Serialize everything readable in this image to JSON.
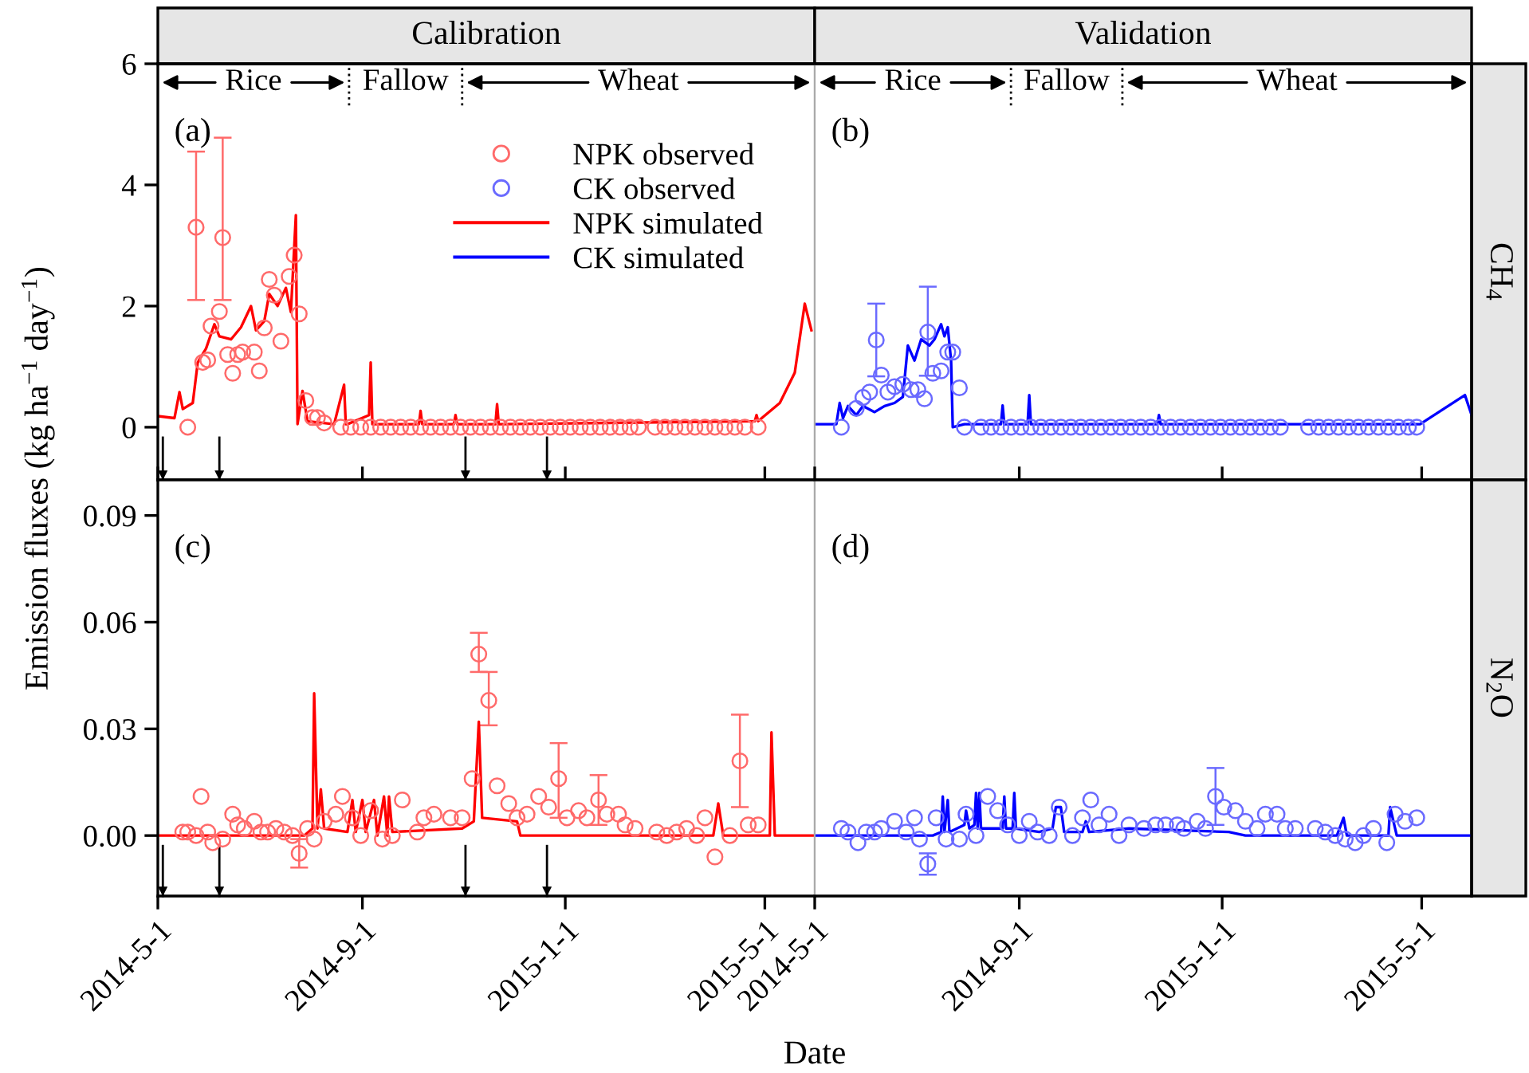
{
  "chart_data": [
    {
      "type": "line",
      "title": "Calibration",
      "ylabel": "Emission fluxes (kg ha$^{−1}$ day$^{−1}$)",
      "legend": "top right",
      "tick_labels": "y",
      "annotations": [
        "(a)",
        "Rice",
        "Fallow",
        "Wheat"
      ],
      "xlim": [
        "2014-05-01",
        "2015-05-31"
      ],
      "ylim": [
        -0.87,
        6
      ],
      "yticks": [
        0,
        2,
        4,
        6
      ],
      "ref_lines": [
        {
          "axis": "x",
          "value": "2014-05-04"
        },
        {
          "axis": "x",
          "value": "2014-06-07"
        },
        {
          "axis": "x",
          "value": "2014-11-02"
        },
        {
          "axis": "x",
          "value": "2014-12-21"
        },
        {
          "axis": "x",
          "value": "2014-08-24",
          "line_style": "dotted"
        },
        {
          "axis": "x",
          "value": "2014-10-31",
          "line_style": "dotted"
        }
      ],
      "series": [
        {
          "name": "NPK observed",
          "type": "scatter",
          "marker": "circle",
          "color": "#ff6a6a",
          "x": [
            "2014-05-19",
            "2014-05-24",
            "2014-05-28",
            "2014-05-31",
            "2014-06-02",
            "2014-06-07",
            "2014-06-09",
            "2014-06-12",
            "2014-06-15",
            "2014-06-18",
            "2014-06-21",
            "2014-06-28",
            "2014-07-01",
            "2014-07-04",
            "2014-07-07",
            "2014-07-10",
            "2014-07-14",
            "2014-07-19",
            "2014-07-22",
            "2014-07-25",
            "2014-07-29",
            "2014-08-02",
            "2014-08-05",
            "2014-08-09",
            "2014-08-19",
            "2014-08-25",
            "2014-08-31",
            "2014-09-06",
            "2014-09-12",
            "2014-09-18",
            "2014-09-24",
            "2014-09-30",
            "2014-10-06",
            "2014-10-12",
            "2014-10-18",
            "2014-10-24",
            "2014-10-30",
            "2014-11-05",
            "2014-11-11",
            "2014-11-17",
            "2014-11-23",
            "2014-11-29",
            "2014-12-05",
            "2014-12-11",
            "2014-12-17",
            "2014-12-23",
            "2014-12-29",
            "2015-01-04",
            "2015-01-10",
            "2015-01-16",
            "2015-01-22",
            "2015-01-28",
            "2015-02-03",
            "2015-02-09",
            "2015-02-14",
            "2015-02-24",
            "2015-03-02",
            "2015-03-08",
            "2015-03-14",
            "2015-03-20",
            "2015-03-26",
            "2015-04-01",
            "2015-04-07",
            "2015-04-13",
            "2015-04-19",
            "2015-04-27"
          ],
          "values": [
            0.0,
            3.3,
            1.07,
            1.11,
            1.67,
            1.91,
            3.13,
            1.2,
            0.89,
            1.2,
            1.24,
            1.24,
            0.93,
            1.64,
            2.44,
            2.18,
            1.42,
            2.49,
            2.84,
            1.87,
            0.44,
            0.16,
            0.16,
            0.07,
            0.0,
            0,
            0,
            0,
            0,
            0,
            0,
            0,
            0,
            0,
            0,
            0,
            0,
            0,
            0,
            0,
            0,
            0,
            0,
            0,
            0,
            0,
            0,
            0,
            0,
            0,
            0,
            0,
            0,
            0,
            0,
            0,
            0,
            0,
            0,
            0,
            0,
            0,
            0,
            0,
            0,
            0
          ],
          "errors": [
            null,
            [
              2.1,
              4.55
            ],
            null,
            null,
            null,
            null,
            [
              2.1,
              4.78
            ],
            null,
            null,
            null,
            null,
            null,
            null,
            null,
            null,
            null,
            null,
            null,
            null,
            null,
            null,
            null,
            null,
            null,
            null,
            null,
            null,
            null,
            null,
            null,
            null,
            null,
            null,
            null,
            null,
            null,
            null,
            null,
            null,
            null,
            null,
            null,
            null,
            null,
            null,
            null,
            null,
            null,
            null,
            null,
            null,
            null,
            null,
            null,
            null,
            null,
            null,
            null,
            null,
            null,
            null,
            null,
            null,
            null,
            null,
            null
          ]
        },
        {
          "name": "NPK simulated",
          "color": "#ff0000",
          "x": [
            "2014-05-02",
            "2014-05-11",
            "2014-05-14",
            "2014-05-16",
            "2014-05-22",
            "2014-05-25",
            "2014-05-30",
            "2014-06-04",
            "2014-06-07",
            "2014-06-14",
            "2014-06-20",
            "2014-06-26",
            "2014-06-29",
            "2014-07-04",
            "2014-07-07",
            "2014-07-12",
            "2014-07-17",
            "2014-07-20",
            "2014-07-23",
            "2014-07-24",
            "2014-07-27",
            "2014-07-30",
            "2014-08-15",
            "2014-08-21",
            "2014-08-22",
            "2014-08-23",
            "2014-09-05",
            "2014-09-06",
            "2014-09-07",
            "2014-10-05",
            "2014-10-06",
            "2014-10-07",
            "2014-10-26",
            "2014-10-27",
            "2014-10-28",
            "2014-11-20",
            "2014-11-21",
            "2014-11-22",
            "2015-04-25",
            "2015-04-26",
            "2015-04-27",
            "2015-05-10",
            "2015-05-19",
            "2015-05-25",
            "2015-05-29"
          ],
          "values": [
            0.18,
            0.15,
            0.58,
            0.3,
            0.4,
            1.07,
            1.3,
            1.7,
            1.5,
            1.45,
            1.65,
            2.0,
            1.6,
            1.75,
            2.2,
            2.0,
            2.3,
            1.9,
            3.5,
            0.05,
            0.6,
            0.1,
            0.05,
            0.7,
            0.05,
            0.05,
            0.2,
            1.07,
            0.05,
            0.05,
            0.27,
            0.05,
            0.05,
            0.2,
            0.05,
            0.05,
            0.38,
            0.05,
            0.1,
            0.2,
            0.1,
            0.4,
            0.9,
            2.04,
            1.6
          ]
        }
      ]
    },
    {
      "type": "line",
      "title": "Validation",
      "y2label": "CH$_{4}$",
      "legend": "top left",
      "tick_labels": false,
      "annotations": [
        "(b)",
        "Rice",
        "Fallow",
        "Wheat"
      ],
      "xlim": [
        "2014-05-01",
        "2015-05-31"
      ],
      "ylim": [
        -0.87,
        6
      ],
      "ref_lines": [
        {
          "axis": "x",
          "value": "2014-08-27",
          "line_style": "dotted"
        },
        {
          "axis": "x",
          "value": "2014-11-02",
          "line_style": "dotted"
        }
      ],
      "series": [
        {
          "name": "CK observed",
          "type": "scatter",
          "marker": "circle",
          "color": "#6a6aff",
          "x": [
            "2014-05-17",
            "2014-05-26",
            "2014-05-30",
            "2014-06-03",
            "2014-06-07",
            "2014-06-10",
            "2014-06-14",
            "2014-06-18",
            "2014-06-23",
            "2014-06-28",
            "2014-07-02",
            "2014-07-06",
            "2014-07-08",
            "2014-07-11",
            "2014-07-16",
            "2014-07-20",
            "2014-07-23",
            "2014-07-27",
            "2014-07-30",
            "2014-08-09",
            "2014-08-15",
            "2014-08-21",
            "2014-08-27",
            "2014-09-02",
            "2014-09-08",
            "2014-09-14",
            "2014-09-20",
            "2014-09-26",
            "2014-10-02",
            "2014-10-08",
            "2014-10-14",
            "2014-10-20",
            "2014-10-26",
            "2014-11-01",
            "2014-11-07",
            "2014-11-13",
            "2014-11-19",
            "2014-11-25",
            "2014-12-01",
            "2014-12-07",
            "2014-12-13",
            "2014-12-19",
            "2014-12-25",
            "2014-12-31",
            "2015-01-06",
            "2015-01-12",
            "2015-01-18",
            "2015-01-24",
            "2015-01-30",
            "2015-02-05",
            "2015-02-22",
            "2015-02-28",
            "2015-03-06",
            "2015-03-12",
            "2015-03-18",
            "2015-03-24",
            "2015-03-30",
            "2015-04-05",
            "2015-04-11",
            "2015-04-17",
            "2015-04-23",
            "2015-04-28"
          ],
          "values": [
            0.0,
            0.31,
            0.49,
            0.58,
            1.44,
            0.86,
            0.58,
            0.67,
            0.71,
            0.62,
            0.62,
            0.47,
            1.57,
            0.89,
            0.93,
            1.24,
            1.24,
            0.65,
            0.0,
            0,
            0,
            0,
            0,
            0,
            0,
            0,
            0,
            0,
            0,
            0,
            0,
            0,
            0,
            0,
            0,
            0,
            0,
            0,
            0,
            0,
            0,
            0,
            0,
            0,
            0,
            0,
            0,
            0,
            0,
            0,
            0,
            0,
            0,
            0,
            0,
            0,
            0,
            0,
            0,
            0,
            0,
            0
          ],
          "errors": [
            null,
            null,
            null,
            null,
            [
              0.84,
              2.04
            ],
            null,
            null,
            null,
            null,
            null,
            null,
            null,
            [
              0.85,
              2.32
            ],
            null,
            null,
            null,
            null,
            null,
            null,
            null,
            null,
            null,
            null,
            null,
            null,
            null,
            null,
            null,
            null,
            null,
            null,
            null,
            null,
            null,
            null,
            null,
            null,
            null,
            null,
            null,
            null,
            null,
            null,
            null,
            null,
            null,
            null,
            null,
            null,
            null,
            null,
            null,
            null,
            null,
            null,
            null,
            null,
            null,
            null,
            null,
            null,
            null
          ]
        },
        {
          "name": "CK simulated",
          "color": "#0000ff",
          "x": [
            "2014-05-01",
            "2014-05-14",
            "2014-05-16",
            "2014-05-18",
            "2014-05-21",
            "2014-05-26",
            "2014-05-30",
            "2014-06-06",
            "2014-06-12",
            "2014-06-18",
            "2014-06-23",
            "2014-06-26",
            "2014-06-30",
            "2014-07-04",
            "2014-07-09",
            "2014-07-12",
            "2014-07-16",
            "2014-07-18",
            "2014-07-20",
            "2014-07-22",
            "2014-07-23",
            "2014-07-30",
            "2014-08-21",
            "2014-08-22",
            "2014-08-23",
            "2014-09-06",
            "2014-09-07",
            "2014-09-08",
            "2014-11-23",
            "2014-11-24",
            "2014-11-25",
            "2015-04-30",
            "2015-05-27",
            "2015-05-31"
          ],
          "values": [
            0.05,
            0.05,
            0.4,
            0.15,
            0.35,
            0.2,
            0.35,
            0.25,
            0.35,
            0.4,
            0.5,
            1.35,
            1.1,
            1.45,
            1.35,
            1.45,
            1.7,
            1.5,
            1.65,
            1.1,
            0.0,
            0.05,
            0.05,
            0.36,
            0.05,
            0.05,
            0.53,
            0.05,
            0.05,
            0.2,
            0.05,
            0.05,
            0.53,
            0.2
          ]
        }
      ]
    },
    {
      "type": "line",
      "xlabel": "Date",
      "annotations": [
        "(c)"
      ],
      "xlim": [
        "2014-05-01",
        "2015-05-31"
      ],
      "xticks": [
        {
          "value": "2014-05-01",
          "label": "2014-5-1"
        },
        {
          "value": "2014-09-01",
          "label": "2014-9-1"
        },
        {
          "value": "2015-01-01",
          "label": "2015-1-1"
        },
        {
          "value": "2015-05-01",
          "label": "2015-5-1"
        }
      ],
      "ylim": [
        -0.017,
        0.1
      ],
      "yticks": [
        {
          "value": 0,
          "label": "0.00"
        },
        {
          "value": 0.03,
          "label": "0.03"
        },
        {
          "value": 0.06,
          "label": "0.06"
        },
        {
          "value": 0.09,
          "label": "0.09"
        }
      ],
      "ref_lines": [
        {
          "axis": "x",
          "value": "2014-05-04"
        },
        {
          "axis": "x",
          "value": "2014-06-07"
        },
        {
          "axis": "x",
          "value": "2014-11-02"
        },
        {
          "axis": "x",
          "value": "2014-12-21"
        }
      ],
      "series": [
        {
          "type": "scatter",
          "marker": "circle",
          "color": "#ff6a6a",
          "x": [
            "2014-05-16",
            "2014-05-19",
            "2014-05-24",
            "2014-05-27",
            "2014-05-31",
            "2014-06-03",
            "2014-06-09",
            "2014-06-15",
            "2014-06-18",
            "2014-06-22",
            "2014-06-28",
            "2014-07-02",
            "2014-07-06",
            "2014-07-11",
            "2014-07-16",
            "2014-07-21",
            "2014-07-25",
            "2014-07-30",
            "2014-08-03",
            "2014-08-09",
            "2014-08-16",
            "2014-08-20",
            "2014-08-26",
            "2014-08-31",
            "2014-09-06",
            "2014-09-13",
            "2014-09-19",
            "2014-09-25",
            "2014-10-04",
            "2014-10-08",
            "2014-10-14",
            "2014-10-24",
            "2014-10-31",
            "2014-11-06",
            "2014-11-10",
            "2014-11-16",
            "2014-11-21",
            "2014-11-28",
            "2014-12-03",
            "2014-12-09",
            "2014-12-16",
            "2014-12-22",
            "2014-12-28",
            "2015-01-02",
            "2015-01-09",
            "2015-01-14",
            "2015-01-21",
            "2015-01-26",
            "2015-02-02",
            "2015-02-06",
            "2015-02-12",
            "2015-02-25",
            "2015-03-03",
            "2015-03-09",
            "2015-03-15",
            "2015-03-21",
            "2015-03-26",
            "2015-04-01",
            "2015-04-10",
            "2015-04-16",
            "2015-04-21",
            "2015-04-27"
          ],
          "values": [
            0.001,
            0.001,
            0.0,
            0.011,
            0.001,
            -0.002,
            -0.001,
            0.006,
            0.003,
            0.002,
            0.004,
            0.001,
            0.001,
            0.002,
            0.001,
            0.0,
            -0.005,
            0.002,
            -0.001,
            0.004,
            0.006,
            0.011,
            0.005,
            0.0,
            0.007,
            -0.001,
            0.0,
            0.01,
            0.001,
            0.005,
            0.006,
            0.005,
            0.005,
            0.016,
            0.051,
            0.038,
            0.014,
            0.009,
            0.005,
            0.006,
            0.011,
            0.008,
            0.016,
            0.005,
            0.007,
            0.005,
            0.01,
            0.006,
            0.006,
            0.003,
            0.002,
            0.001,
            0.0,
            0.001,
            0.002,
            0.0,
            0.005,
            -0.006,
            0.0,
            0.021,
            0.003,
            0.003
          ],
          "errors": [
            null,
            null,
            null,
            null,
            null,
            null,
            null,
            null,
            null,
            null,
            null,
            null,
            null,
            null,
            null,
            null,
            0.004,
            null,
            null,
            null,
            null,
            null,
            null,
            null,
            null,
            null,
            null,
            null,
            null,
            null,
            null,
            null,
            null,
            null,
            [
              0.046,
              0.057
            ],
            [
              0.031,
              0.046
            ],
            null,
            null,
            null,
            null,
            null,
            null,
            [
              0.005,
              0.026
            ],
            null,
            null,
            null,
            [
              0.003,
              0.017
            ],
            null,
            null,
            null,
            null,
            null,
            null,
            null,
            null,
            null,
            null,
            null,
            null,
            [
              0.008,
              0.034
            ],
            null,
            null
          ]
        },
        {
          "color": "#ff0000",
          "x": [
            "2014-05-01",
            "2014-07-28",
            "2014-08-02",
            "2014-08-03",
            "2014-08-05",
            "2014-08-07",
            "2014-08-09",
            "2014-08-23",
            "2014-08-26",
            "2014-08-28",
            "2014-09-01",
            "2014-09-03",
            "2014-09-08",
            "2014-09-10",
            "2014-09-14",
            "2014-09-16",
            "2014-09-17",
            "2014-09-19",
            "2014-10-31",
            "2014-11-07",
            "2014-11-10",
            "2014-11-12",
            "2014-12-03",
            "2014-12-05",
            "2015-03-31",
            "2015-04-03",
            "2015-04-06",
            "2015-05-04",
            "2015-05-05",
            "2015-05-07",
            "2015-05-31"
          ],
          "values": [
            0,
            0,
            0.002,
            0.04,
            0.002,
            0.013,
            0.002,
            0.001,
            0.01,
            0.001,
            0.01,
            0.001,
            0.01,
            0.0,
            0.011,
            0.0,
            0.011,
            0.001,
            0.002,
            0.004,
            0.032,
            0.005,
            0.004,
            0.0,
            0.0,
            0.009,
            0.0,
            0.0,
            0.029,
            0.0,
            0.0
          ]
        }
      ]
    },
    {
      "type": "line",
      "y2label": "N$_{2}$O",
      "annotations": [
        "(d)"
      ],
      "tick_labels": "x",
      "xlim": [
        "2014-05-01",
        "2015-05-31"
      ],
      "xticks": [
        {
          "value": "2014-05-01",
          "label": "2014-5-1"
        },
        {
          "value": "2014-09-01",
          "label": "2014-9-1"
        },
        {
          "value": "2015-01-01",
          "label": "2015-1-1"
        },
        {
          "value": "2015-05-01",
          "label": "2015-5-1"
        }
      ],
      "ylim": [
        -0.017,
        0.1
      ],
      "series": [
        {
          "type": "scatter",
          "marker": "circle",
          "color": "#6a6aff",
          "x": [
            "2014-05-17",
            "2014-05-21",
            "2014-05-27",
            "2014-06-01",
            "2014-06-06",
            "2014-06-10",
            "2014-06-18",
            "2014-06-25",
            "2014-06-30",
            "2014-07-03",
            "2014-07-08",
            "2014-07-13",
            "2014-07-19",
            "2014-07-27",
            "2014-07-31",
            "2014-08-06",
            "2014-08-13",
            "2014-08-19",
            "2014-08-25",
            "2014-09-01",
            "2014-09-07",
            "2014-09-12",
            "2014-09-19",
            "2014-09-25",
            "2014-10-03",
            "2014-10-09",
            "2014-10-14",
            "2014-10-19",
            "2014-10-25",
            "2014-10-31",
            "2014-11-06",
            "2014-11-15",
            "2014-11-22",
            "2014-11-28",
            "2014-12-05",
            "2014-12-09",
            "2014-12-17",
            "2014-12-22",
            "2014-12-28",
            "2015-01-02",
            "2015-01-09",
            "2015-01-15",
            "2015-01-22",
            "2015-01-27",
            "2015-02-03",
            "2015-02-08",
            "2015-02-14",
            "2015-02-26",
            "2015-03-04",
            "2015-03-10",
            "2015-03-16",
            "2015-03-22",
            "2015-03-27",
            "2015-04-02",
            "2015-04-10",
            "2015-04-15",
            "2015-04-21",
            "2015-04-28"
          ],
          "values": [
            0.002,
            0.001,
            -0.002,
            0.001,
            0.001,
            0.002,
            0.004,
            0.001,
            0.005,
            -0.001,
            -0.008,
            0.005,
            -0.001,
            -0.001,
            0.006,
            0.0,
            0.011,
            0.007,
            0.003,
            0.0,
            0.004,
            0.001,
            0.0,
            0.008,
            0.0,
            0.005,
            0.01,
            0.003,
            0.006,
            0.0,
            0.003,
            0.002,
            0.003,
            0.003,
            0.003,
            0.002,
            0.004,
            0.002,
            0.011,
            0.008,
            0.007,
            0.004,
            0.002,
            0.006,
            0.006,
            0.002,
            0.002,
            0.002,
            0.001,
            0.0,
            -0.001,
            -0.002,
            0.0,
            0.002,
            -0.002,
            0.006,
            0.004,
            0.005
          ],
          "errors": [
            null,
            null,
            null,
            null,
            null,
            null,
            null,
            null,
            null,
            null,
            0.003,
            null,
            null,
            null,
            null,
            null,
            null,
            null,
            null,
            null,
            null,
            null,
            null,
            null,
            null,
            null,
            null,
            null,
            null,
            null,
            null,
            null,
            null,
            null,
            null,
            null,
            null,
            null,
            [
              0.003,
              0.019
            ],
            null,
            null,
            null,
            null,
            null,
            null,
            null,
            null,
            null,
            null,
            null,
            null,
            null,
            null,
            null,
            null,
            null,
            null,
            null
          ]
        },
        {
          "color": "#0000ff",
          "x": [
            "2014-05-01",
            "2014-07-11",
            "2014-07-16",
            "2014-07-17",
            "2014-07-18",
            "2014-07-20",
            "2014-07-21",
            "2014-07-30",
            "2014-07-31",
            "2014-08-02",
            "2014-08-05",
            "2014-08-06",
            "2014-08-07",
            "2014-08-08",
            "2014-08-09",
            "2014-08-22",
            "2014-08-23",
            "2014-08-24",
            "2014-08-28",
            "2014-08-29",
            "2014-08-30",
            "2014-09-13",
            "2014-09-21",
            "2014-09-23",
            "2014-09-26",
            "2014-09-28",
            "2014-10-09",
            "2014-10-11",
            "2014-10-13",
            "2014-11-06",
            "2015-01-05",
            "2015-01-15",
            "2015-03-11",
            "2015-03-15",
            "2015-03-17",
            "2015-04-11",
            "2015-04-12",
            "2015-04-16",
            "2015-05-31"
          ],
          "values": [
            0,
            0,
            0.001,
            0.011,
            0.001,
            0.01,
            0.001,
            0.003,
            0.007,
            0.002,
            0.003,
            0.012,
            0.002,
            0.012,
            0.002,
            0.002,
            0.011,
            0.002,
            0.002,
            0.012,
            0.002,
            0.001,
            0.002,
            0.008,
            0.008,
            0.001,
            0.001,
            0.004,
            0.001,
            0.002,
            0.001,
            0.0,
            0.0,
            0.005,
            0.0,
            0.0,
            0.008,
            0.0,
            0.0
          ]
        }
      ]
    }
  ]
}
